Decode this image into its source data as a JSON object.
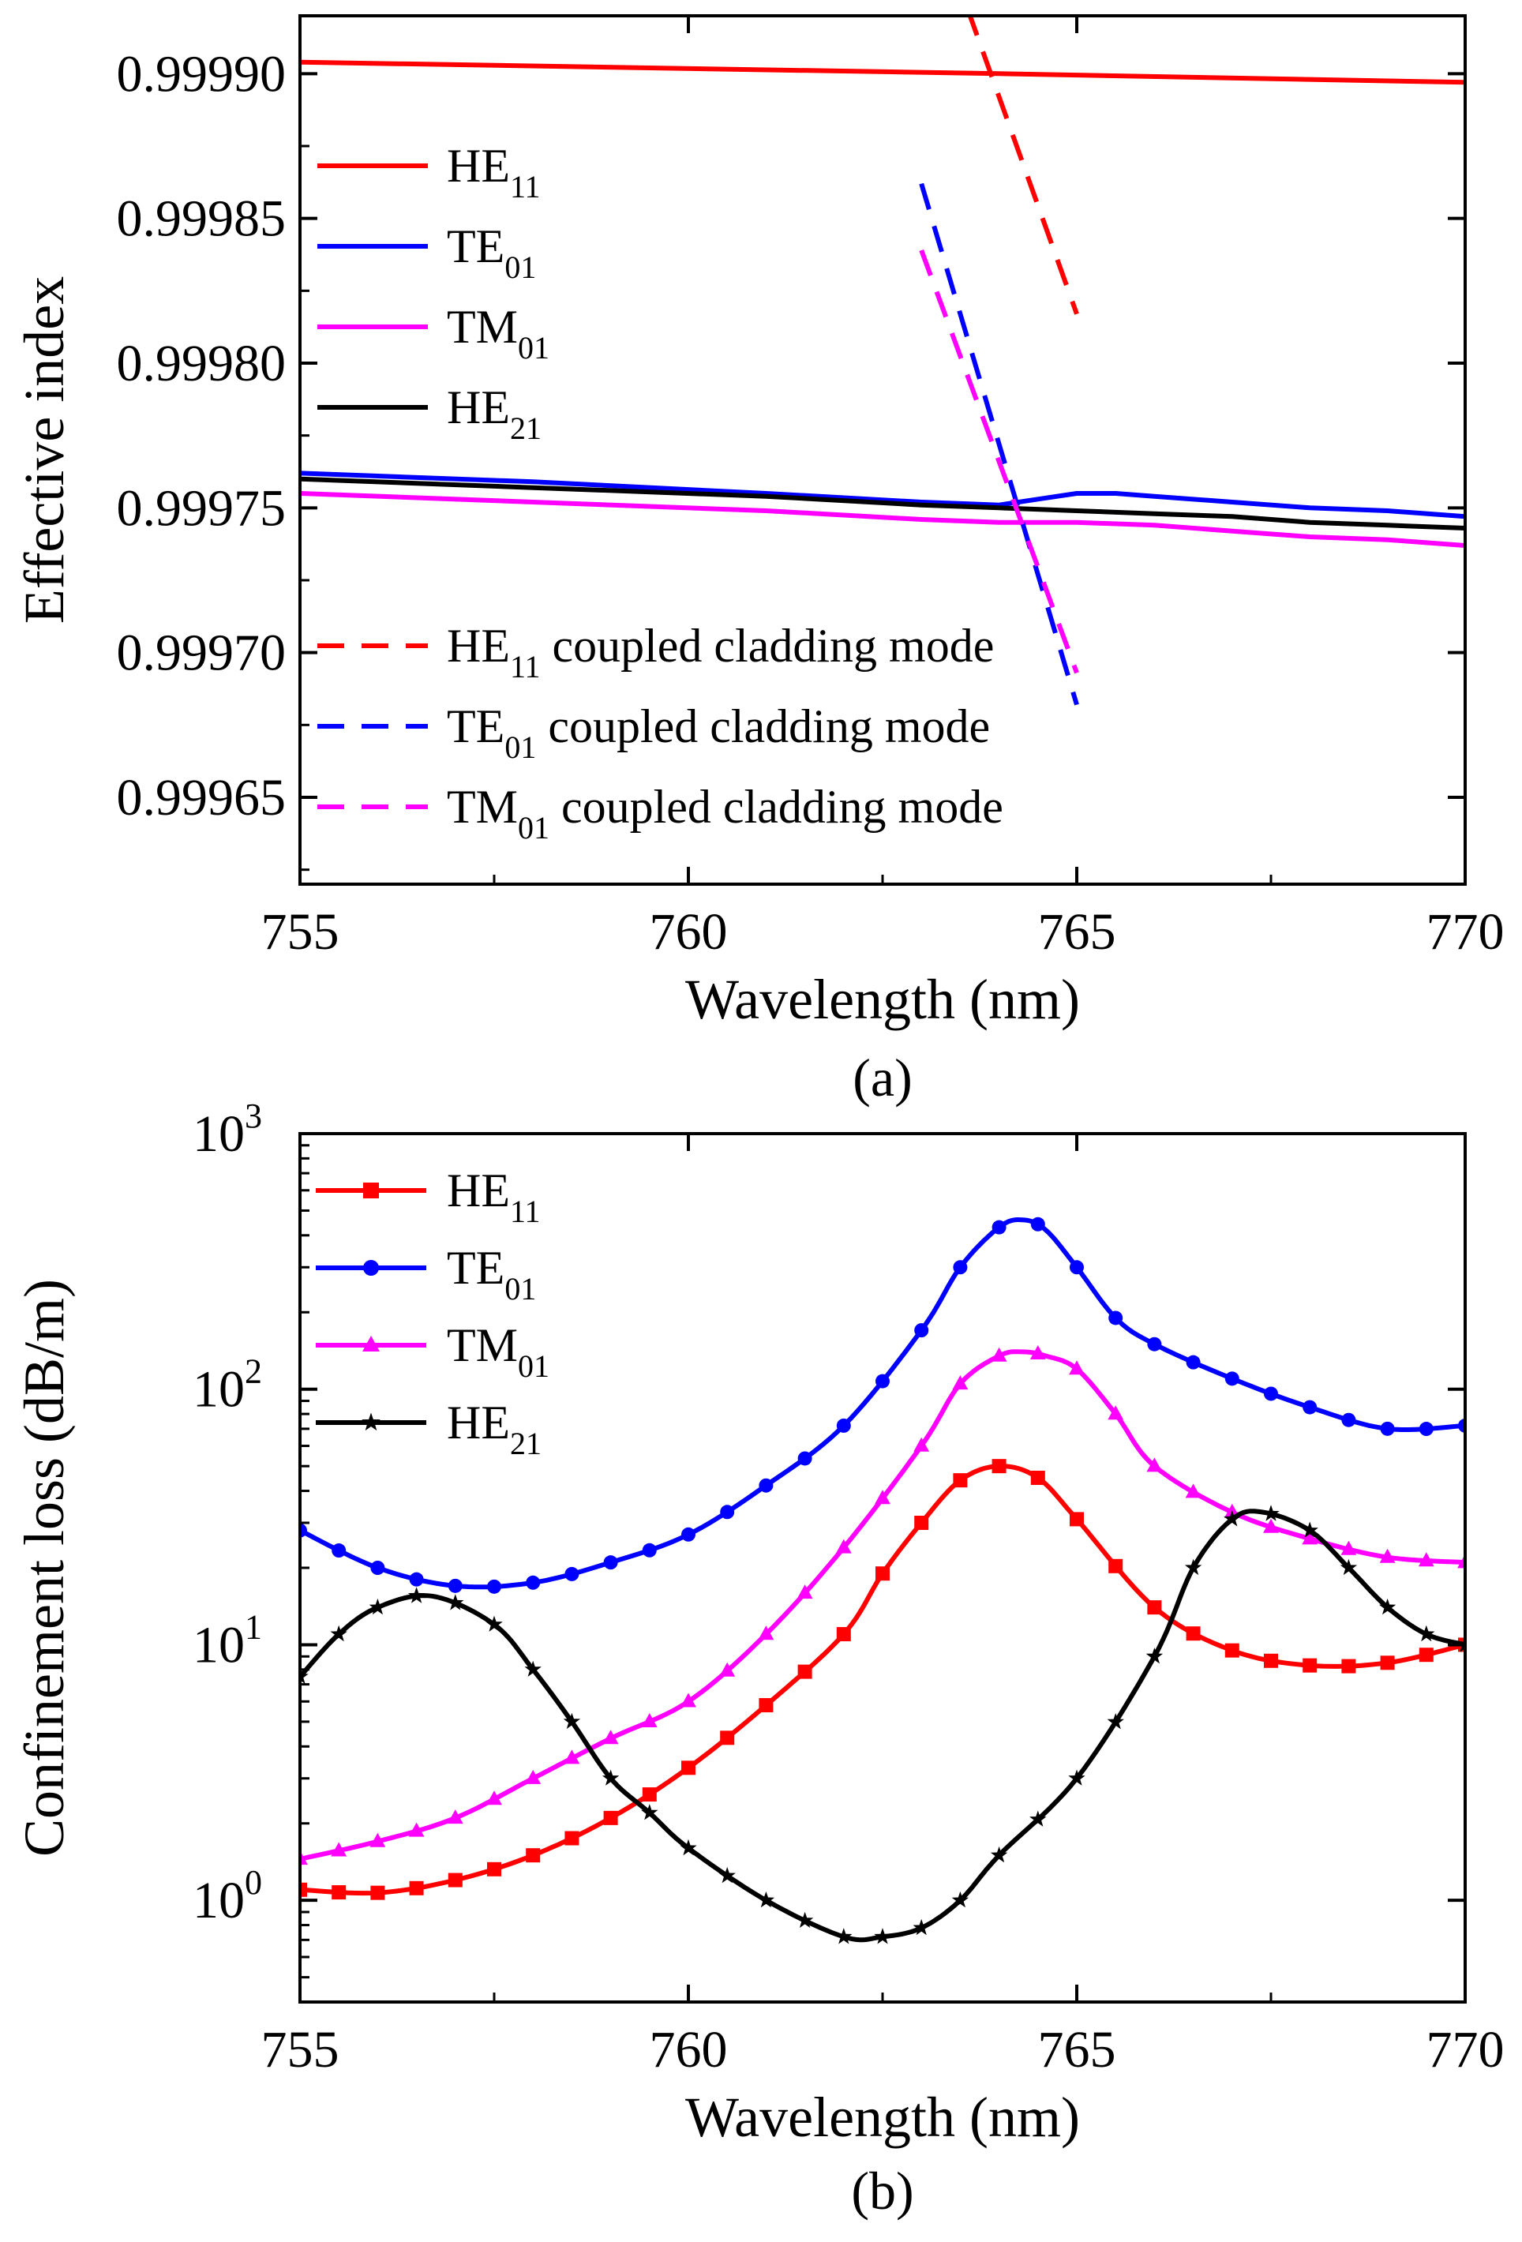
{
  "chart_data": [
    {
      "id": "a",
      "type": "line",
      "panel_label": "(a)",
      "xlabel": "Wavelength (nm)",
      "ylabel": "Effective index",
      "xlim": [
        755,
        770
      ],
      "ylim": [
        0.99962,
        0.99992
      ],
      "xticks": [
        "755",
        "760",
        "765",
        "770"
      ],
      "yticks": [
        "0.99965",
        "0.99970",
        "0.99975",
        "0.99980",
        "0.99985",
        "0.99990"
      ],
      "legend_position": "left",
      "series": [
        {
          "name": "HE",
          "sub": "11",
          "suffix": "",
          "color": "#ff0000",
          "dash": false,
          "x": [
            755,
            764,
            770
          ],
          "y": [
            0.999904,
            0.9999,
            0.999897
          ]
        },
        {
          "name": "TE",
          "sub": "01",
          "suffix": "",
          "color": "#0000ff",
          "dash": false,
          "x": [
            755,
            758,
            761,
            763,
            764,
            764.5,
            765,
            765.5,
            766,
            767,
            768,
            769,
            770
          ],
          "y": [
            0.999762,
            0.999759,
            0.999755,
            0.999752,
            0.999751,
            0.999753,
            0.999755,
            0.999755,
            0.999754,
            0.999752,
            0.99975,
            0.999749,
            0.999747
          ]
        },
        {
          "name": "TM",
          "sub": "01",
          "suffix": "",
          "color": "#ff00ff",
          "dash": false,
          "x": [
            755,
            758,
            761,
            763,
            764,
            764.5,
            765,
            766,
            767,
            768,
            769,
            770
          ],
          "y": [
            0.999755,
            0.999752,
            0.999749,
            0.999746,
            0.999745,
            0.999745,
            0.999745,
            0.999744,
            0.999742,
            0.99974,
            0.999739,
            0.999737
          ]
        },
        {
          "name": "HE",
          "sub": "21",
          "suffix": "",
          "color": "#000000",
          "dash": false,
          "x": [
            755,
            758,
            761,
            763,
            764,
            765,
            766,
            767,
            768,
            769,
            770
          ],
          "y": [
            0.99976,
            0.999757,
            0.999754,
            0.999751,
            0.99975,
            0.999749,
            0.999748,
            0.999747,
            0.999745,
            0.999744,
            0.999743
          ]
        },
        {
          "name": "HE",
          "sub": "11",
          "suffix": " coupled cladding mode",
          "color": "#ff0000",
          "dash": true,
          "x": [
            763.6,
            765.0
          ],
          "y": [
            0.999922,
            0.999817
          ]
        },
        {
          "name": "TE",
          "sub": "01",
          "suffix": " coupled cladding mode",
          "color": "#0000ff",
          "dash": true,
          "x": [
            763.0,
            765.0
          ],
          "y": [
            0.999862,
            0.999682
          ]
        },
        {
          "name": "TM",
          "sub": "01",
          "suffix": " coupled cladding mode",
          "color": "#ff00ff",
          "dash": true,
          "x": [
            763.0,
            765.0
          ],
          "y": [
            0.999839,
            0.999693
          ]
        }
      ]
    },
    {
      "id": "b",
      "type": "line",
      "panel_label": "(b)",
      "xlabel": "Wavelength (nm)",
      "ylabel": "Confinement loss (dB/m)",
      "xlim": [
        755,
        770
      ],
      "ylim": [
        0.4,
        1000
      ],
      "yscale": "log",
      "xticks": [
        "755",
        "760",
        "765",
        "770"
      ],
      "yticks": [
        {
          "base": "10",
          "exp": "0",
          "value": 1
        },
        {
          "base": "10",
          "exp": "1",
          "value": 10
        },
        {
          "base": "10",
          "exp": "2",
          "value": 100
        },
        {
          "base": "10",
          "exp": "3",
          "value": 1000
        }
      ],
      "legend_position": "top-left",
      "series": [
        {
          "name": "HE",
          "sub": "11",
          "color": "#ff0000",
          "marker": "square",
          "x": [
            755,
            756,
            757,
            758,
            759,
            760,
            761,
            762,
            762.5,
            763,
            763.5,
            764,
            764.5,
            765,
            766,
            767,
            768,
            769,
            770
          ],
          "y": [
            1.1,
            1.07,
            1.2,
            1.5,
            2.1,
            3.3,
            5.8,
            11,
            19,
            30,
            44,
            50,
            45,
            31,
            14,
            9.5,
            8.3,
            8.5,
            10
          ]
        },
        {
          "name": "TE",
          "sub": "01",
          "color": "#0000ff",
          "marker": "circle",
          "x": [
            755,
            756,
            757,
            758,
            759,
            760,
            761,
            762,
            763,
            763.5,
            764,
            764.3,
            764.6,
            765,
            765.5,
            766,
            767,
            768,
            769,
            770
          ],
          "y": [
            28,
            20,
            17,
            17.5,
            21,
            27,
            42,
            72,
            170,
            300,
            430,
            460,
            420,
            300,
            190,
            150,
            110,
            85,
            70,
            72
          ]
        },
        {
          "name": "TM",
          "sub": "01",
          "color": "#ff00ff",
          "marker": "triangle",
          "x": [
            755,
            756,
            757,
            758,
            759,
            760,
            761,
            762,
            763,
            763.5,
            764,
            764.3,
            764.6,
            765,
            765.5,
            766,
            767,
            768,
            769,
            770
          ],
          "y": [
            1.45,
            1.7,
            2.1,
            3.0,
            4.3,
            6.0,
            11,
            24,
            60,
            105,
            135,
            140,
            135,
            120,
            80,
            50,
            33,
            26,
            22,
            21
          ]
        },
        {
          "name": "HE",
          "sub": "21",
          "color": "#000000",
          "marker": "star",
          "x": [
            755,
            755.5,
            756,
            756.7,
            757.5,
            758,
            758.5,
            759,
            759.5,
            760,
            761,
            762,
            762.5,
            763,
            763.5,
            764,
            765,
            766,
            766.5,
            767,
            767.4,
            768,
            768.5,
            769,
            769.5,
            770
          ],
          "y": [
            7.5,
            11,
            14,
            15.5,
            12,
            8,
            5,
            3,
            2.2,
            1.6,
            1.0,
            0.72,
            0.72,
            0.78,
            1.0,
            1.5,
            3.0,
            9,
            20,
            31,
            33,
            28,
            20,
            14,
            11,
            10
          ]
        }
      ]
    }
  ]
}
